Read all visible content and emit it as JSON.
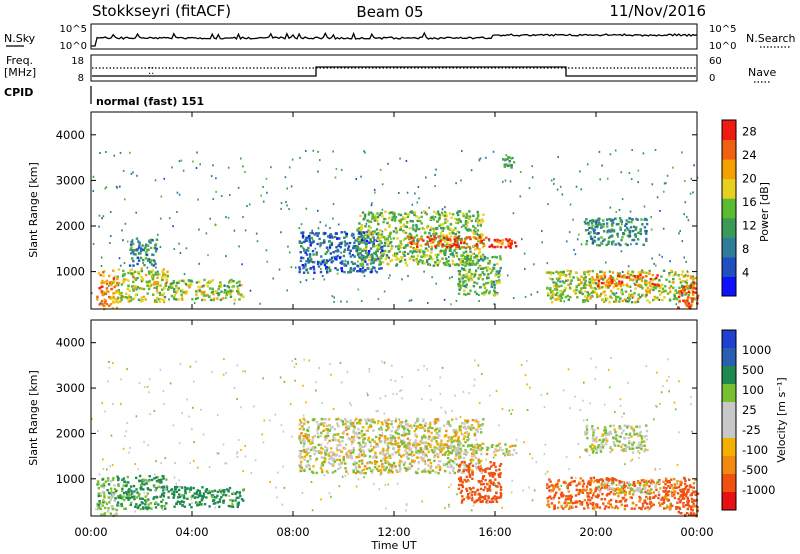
{
  "header": {
    "station": "Stokkseyri (fitACF)",
    "beam": "Beam 05",
    "date": "11/Nov/2016"
  },
  "noise_panel": {
    "left_label": "N.Sky",
    "left_ticks": [
      "10^5",
      "10^0"
    ],
    "right_ticks": [
      "10^5",
      "10^0"
    ],
    "right_label": "N.Search"
  },
  "freq_panel": {
    "left_label_line1": "Freq.",
    "left_label_line2": "[MHz]",
    "left_ticks": [
      "18",
      "8"
    ],
    "right_ticks": [
      "60",
      "0"
    ],
    "right_label": "Nave",
    "cpid_label": "CPID",
    "cpid_value": "normal (fast) 151"
  },
  "colors": {
    "power_scale": [
      "#1010ff",
      "#2050c0",
      "#2e7b9a",
      "#3a9a58",
      "#5aba30",
      "#e8d020",
      "#f5a000",
      "#f06010",
      "#ee1c10"
    ],
    "velocity_scale": [
      "#e81010",
      "#f05010",
      "#f08a10",
      "#f4b000",
      "#c8c8c8",
      "#c8c8c8",
      "#78c030",
      "#1f8a50",
      "#2a5fb0",
      "#2040d0"
    ],
    "gray": "#c8c8c8"
  },
  "chart_data": [
    {
      "type": "heatmap",
      "title": "Power",
      "xlabel": "Time UT",
      "ylabel": "Slant Range [km]",
      "x_ticks": [
        "00:00",
        "04:00",
        "08:00",
        "12:00",
        "16:00",
        "20:00",
        "00:00"
      ],
      "y_ticks": [
        "1000",
        "2000",
        "3000",
        "4000"
      ],
      "xlim": [
        0,
        24
      ],
      "ylim": [
        180,
        4500
      ],
      "colorbar": {
        "label": "Power [dB]",
        "ticks": [
          "4",
          "8",
          "12",
          "16",
          "20",
          "24",
          "28"
        ],
        "range": [
          0,
          30
        ]
      },
      "regions": [
        {
          "t": [
            0.2,
            1.0
          ],
          "r": [
            200,
            1050
          ],
          "v": 22
        },
        {
          "t": [
            1.0,
            3.0
          ],
          "r": [
            350,
            1100
          ],
          "v": 17
        },
        {
          "t": [
            1.5,
            2.6
          ],
          "r": [
            1150,
            1750
          ],
          "v": 10
        },
        {
          "t": [
            3.0,
            6.0
          ],
          "r": [
            400,
            850
          ],
          "v": 16
        },
        {
          "t": [
            8.2,
            11.5
          ],
          "r": [
            1000,
            1900
          ],
          "v": 7
        },
        {
          "t": [
            10.5,
            15.5
          ],
          "r": [
            1150,
            2350
          ],
          "v": 15
        },
        {
          "t": [
            12.5,
            16.8
          ],
          "r": [
            1550,
            1800
          ],
          "v": 26
        },
        {
          "t": [
            14.5,
            16.2
          ],
          "r": [
            500,
            1400
          ],
          "v": 14
        },
        {
          "t": [
            18.0,
            23.9
          ],
          "r": [
            350,
            1050
          ],
          "v": 17
        },
        {
          "t": [
            20.0,
            22.5
          ],
          "r": [
            700,
            950
          ],
          "v": 25
        },
        {
          "t": [
            23.2,
            24.0
          ],
          "r": [
            200,
            800
          ],
          "v": 26
        },
        {
          "t": [
            19.5,
            22.0
          ],
          "r": [
            1600,
            2200
          ],
          "v": 10
        },
        {
          "t": [
            16.2,
            16.8
          ],
          "r": [
            3300,
            3550
          ],
          "v": 12
        }
      ]
    },
    {
      "type": "heatmap",
      "title": "Velocity",
      "xlabel": "Time UT",
      "ylabel": "Slant Range [km]",
      "x_ticks": [
        "00:00",
        "04:00",
        "08:00",
        "12:00",
        "16:00",
        "20:00",
        "00:00"
      ],
      "y_ticks": [
        "1000",
        "2000",
        "3000",
        "4000"
      ],
      "xlim": [
        0,
        24
      ],
      "ylim": [
        180,
        4500
      ],
      "colorbar": {
        "label": "Velocity [m s⁻¹]",
        "ticks": [
          "1000",
          "500",
          "100",
          "25",
          "-25",
          "-100",
          "-500",
          "-1000"
        ]
      },
      "regions": [
        {
          "t": [
            0.2,
            1.0
          ],
          "r": [
            200,
            1050
          ],
          "v": 60
        },
        {
          "t": [
            1.0,
            3.0
          ],
          "r": [
            350,
            1100
          ],
          "v": 120
        },
        {
          "t": [
            3.0,
            6.0
          ],
          "r": [
            400,
            850
          ],
          "v": 150
        },
        {
          "t": [
            8.2,
            15.5
          ],
          "r": [
            1150,
            2350
          ],
          "v": 0
        },
        {
          "t": [
            12.5,
            16.8
          ],
          "r": [
            1550,
            1800
          ],
          "v": 0
        },
        {
          "t": [
            14.5,
            16.2
          ],
          "r": [
            500,
            1400
          ],
          "v": -300
        },
        {
          "t": [
            18.0,
            23.9
          ],
          "r": [
            350,
            1050
          ],
          "v": -120
        },
        {
          "t": [
            20.0,
            22.5
          ],
          "r": [
            700,
            950
          ],
          "v": 0
        },
        {
          "t": [
            19.5,
            22.0
          ],
          "r": [
            1600,
            2200
          ],
          "v": 20
        },
        {
          "t": [
            23.2,
            24.0
          ],
          "r": [
            200,
            800
          ],
          "v": -400
        }
      ]
    }
  ]
}
